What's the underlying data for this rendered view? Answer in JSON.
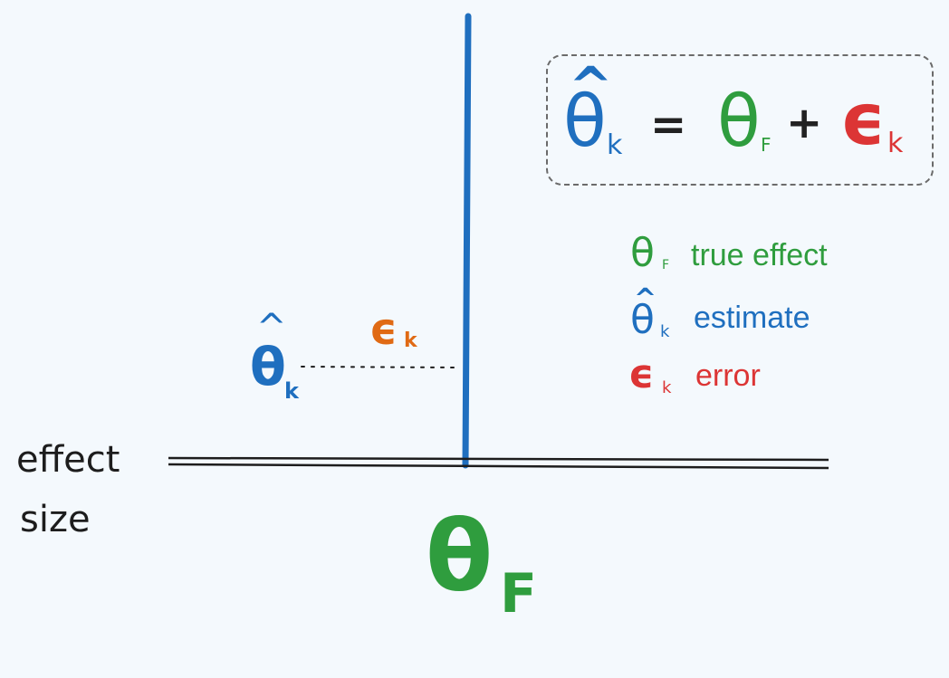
{
  "colors": {
    "blue": "#1f6fbf",
    "green": "#2f9d3e",
    "red": "#dc3535",
    "orange": "#e06a14",
    "ink": "#1d1d1d"
  },
  "formula": {
    "lhs_symbol": "θ",
    "lhs_hat": "^",
    "lhs_sub": "k",
    "equals": "=",
    "true_symbol": "θ",
    "true_sub": "F",
    "plus": "+",
    "error_symbol": "ϵ",
    "error_sub": "k"
  },
  "legend": [
    {
      "symbol": "θ",
      "hat": "",
      "sub": "F",
      "text": "true effect",
      "color": "green"
    },
    {
      "symbol": "θ",
      "hat": "^",
      "sub": "k",
      "text": "estimate",
      "color": "blue"
    },
    {
      "symbol": "ϵ",
      "hat": "",
      "sub": "k",
      "text": "error",
      "color": "red"
    }
  ],
  "axis": {
    "label_line1": "effect",
    "label_line2": "size"
  },
  "estimate_marker": {
    "symbol": "θ",
    "hat": "^",
    "sub": "k"
  },
  "error_marker": {
    "symbol": "ϵ",
    "sub": "k"
  },
  "true_marker": {
    "symbol": "θ",
    "sub": "F"
  }
}
